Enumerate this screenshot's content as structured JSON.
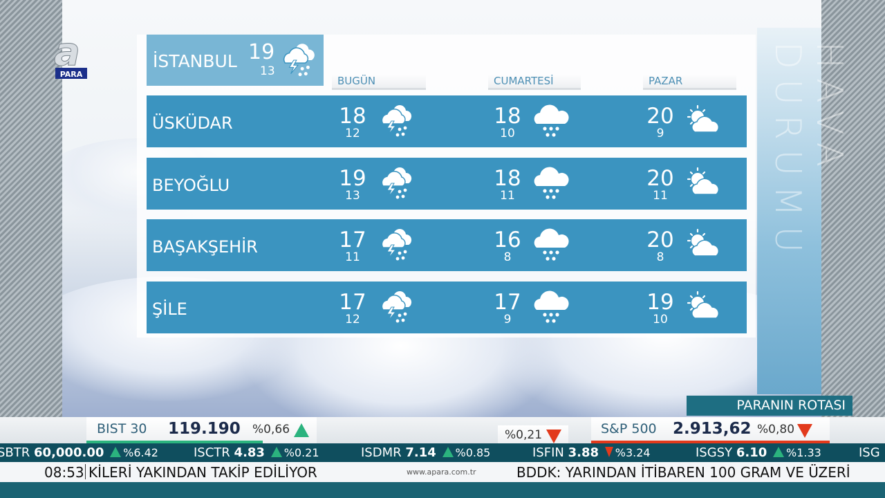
{
  "channel": {
    "logo_letter": "a",
    "logo_sub": "PARA"
  },
  "side_title": "HAVA DURUMU",
  "city": {
    "name": "İSTANBUL",
    "high": "19",
    "low": "13",
    "icon": "thunderstorm-icon"
  },
  "columns": [
    "BUGÜN",
    "CUMARTESİ",
    "PAZAR"
  ],
  "districts": [
    {
      "name": "ÜSKÜDAR",
      "days": [
        {
          "high": "18",
          "low": "12",
          "icon": "thunderstorm-icon"
        },
        {
          "high": "18",
          "low": "10",
          "icon": "rain-icon"
        },
        {
          "high": "20",
          "low": "9",
          "icon": "partly-sunny-icon"
        }
      ]
    },
    {
      "name": "BEYOĞLU",
      "days": [
        {
          "high": "19",
          "low": "13",
          "icon": "thunderstorm-icon"
        },
        {
          "high": "18",
          "low": "11",
          "icon": "rain-icon"
        },
        {
          "high": "20",
          "low": "11",
          "icon": "partly-sunny-icon"
        }
      ]
    },
    {
      "name": "BAŞAKŞEHİR",
      "days": [
        {
          "high": "17",
          "low": "11",
          "icon": "thunderstorm-icon"
        },
        {
          "high": "16",
          "low": "8",
          "icon": "rain-icon"
        },
        {
          "high": "20",
          "low": "8",
          "icon": "partly-sunny-icon"
        }
      ]
    },
    {
      "name": "ŞİLE",
      "days": [
        {
          "high": "17",
          "low": "12",
          "icon": "thunderstorm-icon"
        },
        {
          "high": "17",
          "low": "9",
          "icon": "rain-icon"
        },
        {
          "high": "19",
          "low": "10",
          "icon": "partly-sunny-icon"
        }
      ]
    }
  ],
  "program": "PARANIN ROTASI",
  "indices": [
    {
      "label": "BIST 30",
      "value": "119.190",
      "change": "%0,66",
      "direction": "up"
    },
    {
      "label": "",
      "value": "",
      "change": "%0,21",
      "direction": "down"
    },
    {
      "label": "S&P 500",
      "value": "2.913,62",
      "change": "%0,80",
      "direction": "down"
    }
  ],
  "stocks": [
    {
      "symbol": "SBTR",
      "price": "60,000.00",
      "change": "%6.42",
      "direction": "up"
    },
    {
      "symbol": "ISCTR",
      "price": "4.83",
      "change": "%0.21",
      "direction": "up"
    },
    {
      "symbol": "ISDMR",
      "price": "7.14",
      "change": "%0.85",
      "direction": "up"
    },
    {
      "symbol": "ISFIN",
      "price": "3.88",
      "change": "%3.24",
      "direction": "down"
    },
    {
      "symbol": "ISGSY",
      "price": "6.10",
      "change": "%1.33",
      "direction": "up"
    },
    {
      "symbol": "ISG",
      "price": "",
      "change": "",
      "direction": ""
    }
  ],
  "news": {
    "time": "08:53",
    "headline_1": "KİLERİ YAKINDAN TAKİP EDİLİYOR",
    "site": "www.apara.com.tr",
    "headline_2": "BDDK: YARINDAN İTİBAREN 100 GRAM VE ÜZERİ"
  },
  "colors": {
    "row": "#3b94c0",
    "header": "#79b6d5",
    "ticker": "#0f4e5e",
    "up": "#2bb37e",
    "down": "#e23a1c"
  }
}
